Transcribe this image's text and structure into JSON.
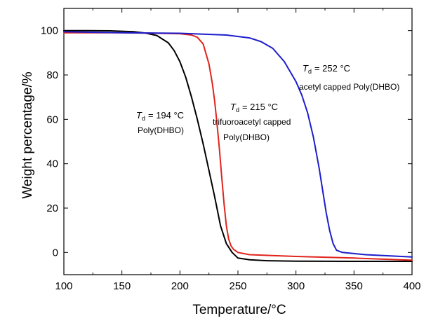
{
  "chart_data": {
    "type": "line",
    "xlabel": "Temperature/°C",
    "ylabel": "Weight percentage/%",
    "xlim": [
      100,
      400
    ],
    "ylim": [
      -10,
      110
    ],
    "xticks": [
      100,
      150,
      200,
      250,
      300,
      350,
      400
    ],
    "yticks": [
      0,
      20,
      40,
      60,
      80,
      100
    ],
    "grid": false,
    "series": [
      {
        "color": "#000000",
        "x": [
          100,
          120,
          140,
          160,
          170,
          180,
          190,
          195,
          200,
          205,
          210,
          215,
          220,
          225,
          230,
          235,
          240,
          245,
          250,
          260,
          275,
          300,
          350,
          400
        ],
        "y": [
          100,
          100,
          99.9,
          99.5,
          98.9,
          97.8,
          94.5,
          91,
          86,
          79,
          70,
          60,
          49,
          37,
          25,
          12,
          4,
          0,
          -2.5,
          -3.3,
          -3.7,
          -3.9,
          -4.0,
          -4.0
        ]
      },
      {
        "color": "#e0241c",
        "x": [
          100,
          150,
          180,
          200,
          210,
          215,
          220,
          225,
          228,
          230,
          232,
          234,
          236,
          238,
          240,
          242,
          244,
          246,
          250,
          260,
          300,
          350,
          400
        ],
        "y": [
          99,
          99,
          98.8,
          98.6,
          98,
          97,
          94,
          85,
          76,
          68,
          58,
          47,
          34,
          22,
          12,
          6,
          3,
          1.5,
          0,
          -1,
          -1.8,
          -2.5,
          -3.5
        ]
      },
      {
        "color": "#1d1dcc",
        "x": [
          100,
          150,
          200,
          240,
          260,
          270,
          280,
          290,
          300,
          305,
          310,
          315,
          320,
          323,
          326,
          329,
          332,
          335,
          340,
          350,
          360,
          380,
          400
        ],
        "y": [
          99.5,
          99,
          98.8,
          98,
          96.7,
          95,
          92,
          86,
          77,
          71,
          63,
          52,
          38,
          28,
          18,
          10,
          4,
          1,
          0,
          -0.5,
          -1,
          -1.5,
          -2
        ]
      }
    ],
    "annotations": [
      {
        "td_symbol": "T",
        "td_sub": "d",
        "td_value": "= 194 °C",
        "label": "Poly(DHBO)"
      },
      {
        "td_symbol": "T",
        "td_sub": "d",
        "td_value": "= 215 °C",
        "label_line1": "trifuoroacetyl capped",
        "label_line2": "Poly(DHBO)"
      },
      {
        "td_symbol": "T",
        "td_sub": "d",
        "td_value": "= 252 °C",
        "label": "acetyl capped Poly(DHBO)"
      }
    ]
  }
}
